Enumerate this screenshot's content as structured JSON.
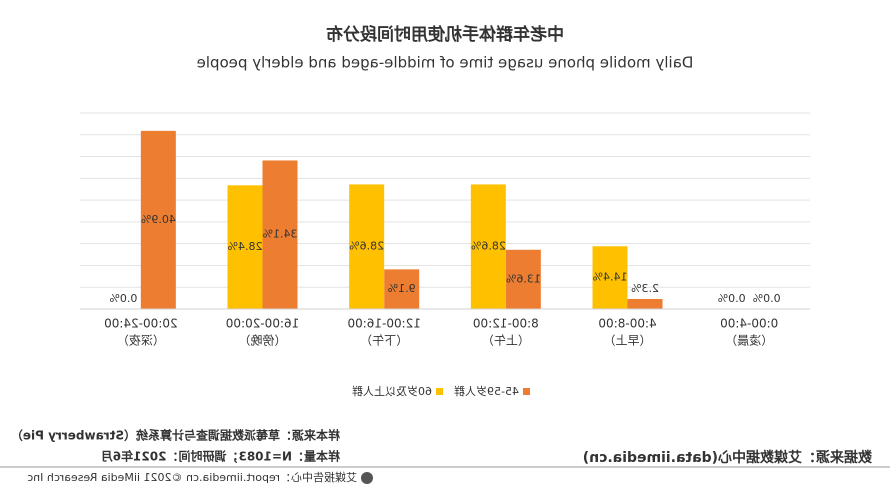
{
  "chart_data": {
    "type": "bar",
    "title": "中老年群体手机使用时间段分布",
    "subtitle": "Daily mobile phone usage time of middle-aged and elderly people",
    "categories": [
      "0:00-4:00",
      "4:00-8:00",
      "8:00-12:00",
      "12:00-16:00",
      "16:00-20:00",
      "20:00-24:00"
    ],
    "category_periods": [
      "（凌晨）",
      "（早上）",
      "（上午）",
      "（下午）",
      "（傍晚）",
      "（深夜）"
    ],
    "series": [
      {
        "name": "45-59岁人群",
        "color": "#ed7d31",
        "values": [
          0.0,
          2.3,
          13.6,
          9.1,
          34.1,
          40.9
        ],
        "value_labels": [
          "0.0%",
          "2.3%",
          "13.6%",
          "9.1%",
          "34.1%",
          "40.9%"
        ]
      },
      {
        "name": "60岁及以上人群",
        "color": "#ffc000",
        "values": [
          0.0,
          14.4,
          28.6,
          28.6,
          28.4,
          0.0
        ],
        "value_labels": [
          "0.0%",
          "14.4%",
          "28.6%",
          "28.6%",
          "28.4%",
          "0.0%"
        ]
      }
    ],
    "ylim": [
      0,
      45
    ],
    "yticks": [
      0,
      5,
      10,
      15,
      20,
      25,
      30,
      35,
      40,
      45
    ],
    "grid": true,
    "footer": {
      "data_source": "数据来源：艾媒数据中心(data.iimedia.cn)",
      "sample_source": "样本来源：草莓派数据调查与计算系统（Strawberry Pie）",
      "sample_size": "样本量：N=1083；调研时间：2021年6月",
      "copyright": "艾媒报告中心：report.iimedia.cn  ©2021  iiMedia Research Inc"
    }
  }
}
